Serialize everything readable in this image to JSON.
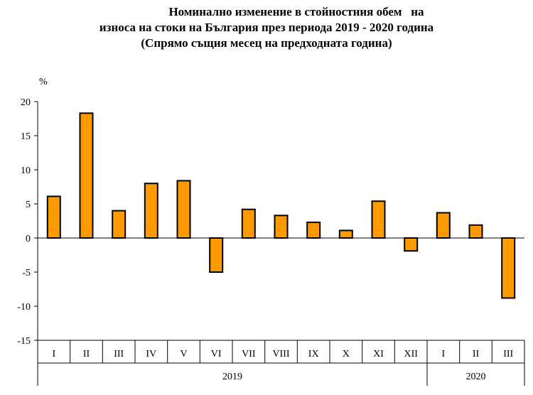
{
  "title_lines": [
    "Номинално изменение в стойностния обем   на",
    "износа на стоки на България през периода 2019 - 2020 година",
    "(Спрямо същия месец на предходната година)"
  ],
  "colors": {
    "bar_fill": "#FF9900",
    "bar_stroke": "#000000",
    "grid": "#000000"
  },
  "chart_data": {
    "type": "bar",
    "title": "Номинално изменение в стойностния обем   на износа на стоки на България през периода 2019 - 2020 година (Спрямо същия месец на предходната година)",
    "ylabel": "%",
    "xlabel": "",
    "ylim": [
      -15,
      20
    ],
    "yticks": [
      20,
      15,
      10,
      5,
      0,
      -5,
      -10,
      -15
    ],
    "grid": false,
    "categories": [
      "I",
      "II",
      "III",
      "IV",
      "V",
      "VI",
      "VII",
      "VIII",
      "IX",
      "X",
      "XI",
      "XII",
      "I",
      "II",
      "III"
    ],
    "values": [
      6.1,
      18.3,
      4.0,
      8.0,
      8.4,
      -5.0,
      4.2,
      3.3,
      2.3,
      1.1,
      5.4,
      -1.9,
      3.7,
      1.9,
      -8.8
    ],
    "groups": [
      {
        "label": "2019",
        "count": 12
      },
      {
        "label": "2020",
        "count": 3
      }
    ]
  }
}
